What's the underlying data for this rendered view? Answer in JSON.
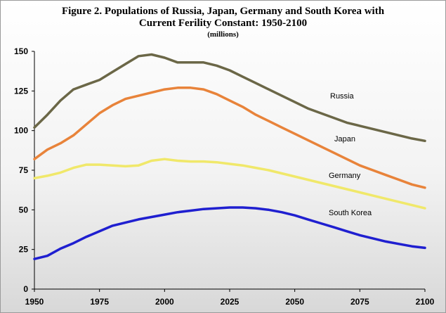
{
  "chart_data": {
    "type": "line",
    "title_line1": "Figure 2. Populations of Russia, Japan, Germany and South Korea with",
    "title_line2": "Current Ferility Constant: 1950-2100",
    "subtitle": "(millions)",
    "xlabel": "",
    "ylabel": "",
    "xlim": [
      1950,
      2100
    ],
    "ylim": [
      0,
      150
    ],
    "xticks": [
      1950,
      1975,
      2000,
      2025,
      2050,
      2075,
      2100
    ],
    "yticks": [
      0,
      25,
      50,
      75,
      100,
      125,
      150
    ],
    "grid": false,
    "legend": "inline labels",
    "x": [
      1950,
      1955,
      1960,
      1965,
      1970,
      1975,
      1980,
      1985,
      1990,
      1995,
      2000,
      2005,
      2010,
      2015,
      2020,
      2025,
      2030,
      2035,
      2040,
      2045,
      2050,
      2055,
      2060,
      2065,
      2070,
      2075,
      2080,
      2085,
      2090,
      2095,
      2100
    ],
    "series": [
      {
        "name": "Russia",
        "color": "#6b6747",
        "values": [
          102,
          110,
          119,
          126,
          129,
          132,
          137,
          142,
          147,
          148,
          146,
          143,
          143,
          143,
          141,
          138,
          134,
          130,
          126,
          122,
          118,
          114,
          111,
          108,
          105,
          103,
          101,
          99,
          97,
          95,
          93.5
        ]
      },
      {
        "name": "Japan",
        "color": "#e8833a",
        "values": [
          82,
          88,
          92,
          97,
          104,
          111,
          116,
          120,
          122,
          124,
          126,
          127,
          127,
          126,
          123,
          119,
          115,
          110,
          106,
          102,
          98,
          94,
          90,
          86,
          82,
          78,
          75,
          72,
          69,
          66,
          64
        ]
      },
      {
        "name": "Germany",
        "color": "#f0e86a",
        "values": [
          70,
          71.5,
          73.5,
          76.5,
          78.5,
          78.5,
          78,
          77.5,
          78,
          81,
          82,
          81,
          80.5,
          80.5,
          80,
          79,
          78,
          76.5,
          75,
          73,
          71,
          69,
          67,
          65,
          63,
          61,
          59,
          57,
          55,
          53,
          51
        ]
      },
      {
        "name": "South Korea",
        "color": "#1f1fd0",
        "values": [
          19,
          21,
          25.5,
          29,
          33,
          36.5,
          40,
          42,
          44,
          45.5,
          47,
          48.5,
          49.5,
          50.5,
          51,
          51.5,
          51.5,
          51,
          50,
          48.5,
          46.5,
          44,
          41.5,
          39,
          36.5,
          34,
          32,
          30,
          28.5,
          27,
          26
        ]
      }
    ],
    "labels": [
      "Russia",
      "Japan",
      "Germany",
      "South Korea"
    ]
  }
}
